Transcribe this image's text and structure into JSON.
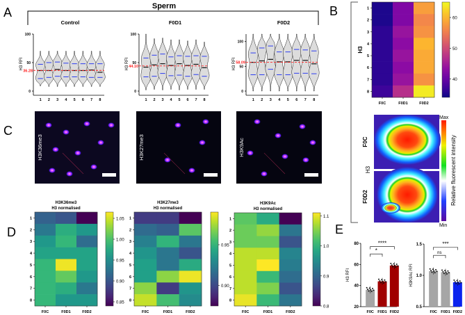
{
  "panel_letters": {
    "a": "A",
    "b": "B",
    "c": "C",
    "d": "D",
    "e": "E"
  },
  "panel_a": {
    "title": "Sperm"
  },
  "panel_b": {
    "fluor_labels": {
      "top": "F0C",
      "bottom": "F0D2",
      "channel": "H3"
    },
    "colorbar": {
      "max": "Max",
      "min": "Min",
      "label": "Relative fluorescent intensity"
    }
  },
  "panel_c": {
    "images": [
      {
        "label": "H3K36me3"
      },
      {
        "label": "H3K27me3"
      },
      {
        "label": "H3K9Ac"
      }
    ]
  },
  "chart_data": [
    {
      "id": "A-control",
      "type": "violin",
      "title": "Control",
      "ylabel": "H3 RFI",
      "ylim": [
        0,
        100
      ],
      "yticks": [
        "0",
        "50",
        "100"
      ],
      "categories": [
        "1",
        "2",
        "3",
        "4",
        "5",
        "6",
        "7",
        "8"
      ],
      "mean_line": {
        "value": 36.28,
        "label": "36.28"
      },
      "median": [
        36,
        36,
        38,
        36,
        36,
        36,
        37,
        33
      ],
      "q1": [
        22,
        24,
        26,
        25,
        25,
        25,
        24,
        24
      ],
      "q3": [
        47,
        50,
        51,
        49,
        48,
        48,
        48,
        48
      ],
      "min": [
        9,
        8,
        8,
        8,
        8,
        8,
        8,
        8
      ],
      "max": [
        70,
        70,
        70,
        70,
        70,
        70,
        70,
        70
      ]
    },
    {
      "id": "A-F0D1",
      "type": "violin",
      "title": "F0D1",
      "ylabel": "H3 RFI",
      "ylim": [
        0,
        100
      ],
      "yticks": [
        "0",
        "50",
        "100"
      ],
      "categories": [
        "1",
        "2",
        "3",
        "4",
        "5",
        "6",
        "7",
        "8"
      ],
      "mean_line": {
        "value": 44.1,
        "label": "44.10"
      },
      "median": [
        42,
        46,
        48,
        45,
        48,
        45,
        47,
        41
      ],
      "q1": [
        25,
        26,
        31,
        27,
        28,
        26,
        29,
        26
      ],
      "q3": [
        58,
        63,
        65,
        60,
        62,
        61,
        62,
        61
      ],
      "min": [
        2,
        3,
        2,
        3,
        2,
        3,
        3,
        3
      ],
      "max": [
        100,
        92,
        93,
        90,
        90,
        88,
        90,
        86
      ],
      "mean_at": [
        0
      ]
    },
    {
      "id": "A-F0D2",
      "type": "violin",
      "title": "F0D2",
      "ylabel": "H3 RFI",
      "ylim": [
        0,
        115
      ],
      "yticks": [
        "0",
        "50",
        "100"
      ],
      "categories": [
        "1",
        "2",
        "3",
        "4",
        "5",
        "6",
        "7",
        "8"
      ],
      "mean_line": {
        "value": 58.09,
        "label": "58.09"
      },
      "median": [
        58,
        61,
        64,
        59,
        59,
        62,
        62,
        55
      ],
      "q1": [
        33,
        33,
        44,
        33,
        33,
        36,
        36,
        35
      ],
      "q3": [
        77,
        87,
        91,
        79,
        79,
        84,
        83,
        81
      ],
      "min": [
        0,
        0,
        0,
        0,
        0,
        0,
        0,
        0
      ],
      "max": [
        115,
        115,
        115,
        115,
        115,
        115,
        115,
        115
      ]
    },
    {
      "id": "B-H3-heatmap",
      "type": "heatmap",
      "ylabel": "H3",
      "x": [
        "F0C",
        "F0D1",
        "F0D2"
      ],
      "y": [
        "1",
        "2",
        "3",
        "4",
        "5",
        "6",
        "7",
        "8"
      ],
      "colorscale": "plasma",
      "range": [
        34,
        65
      ],
      "colorbar_ticks": [
        "40",
        "50",
        "60"
      ],
      "values": [
        [
          35,
          42,
          58
        ],
        [
          35,
          42,
          56
        ],
        [
          36,
          44,
          57
        ],
        [
          36,
          43,
          60
        ],
        [
          36,
          44,
          59
        ],
        [
          36,
          43,
          59
        ],
        [
          36,
          44,
          57
        ],
        [
          37,
          47,
          64
        ]
      ]
    },
    {
      "id": "D-H3K36me3",
      "type": "heatmap",
      "title": "H3K36me3",
      "subtitle": "H3 normalised",
      "x": [
        "F0C",
        "F0D1",
        "F0D2"
      ],
      "y": [
        "1",
        "2",
        "3",
        "4",
        "5",
        "6",
        "7",
        "8"
      ],
      "colorscale": "viridis",
      "range": [
        0.84,
        1.065
      ],
      "colorbar_ticks": [
        "0.85",
        "0.90",
        "0.95",
        "1.00",
        "1.05"
      ],
      "values": [
        [
          0.91,
          0.9,
          0.84
        ],
        [
          0.93,
          0.98,
          0.96
        ],
        [
          0.96,
          0.99,
          0.92
        ],
        [
          0.97,
          0.97,
          0.97
        ],
        [
          0.99,
          1.06,
          0.97
        ],
        [
          0.99,
          1.01,
          0.96
        ],
        [
          0.99,
          0.98,
          0.93
        ],
        [
          0.99,
          0.96,
          0.96
        ]
      ]
    },
    {
      "id": "D-H3K27me3",
      "type": "heatmap",
      "title": "H3K27me3",
      "subtitle": "H3 normalised",
      "x": [
        "F0C",
        "F0D1",
        "F0D2"
      ],
      "y": [
        "1",
        "2",
        "3",
        "4",
        "5",
        "6",
        "7",
        "8"
      ],
      "colorscale": "viridis",
      "range": [
        0.875,
        0.99
      ],
      "colorbar_ticks": [
        "0.90",
        "0.95"
      ],
      "values": [
        [
          0.895,
          0.895,
          0.875
        ],
        [
          0.915,
          0.91,
          0.96
        ],
        [
          0.925,
          0.95,
          0.92
        ],
        [
          0.935,
          0.92,
          0.905
        ],
        [
          0.94,
          0.92,
          0.945
        ],
        [
          0.94,
          0.97,
          0.987
        ],
        [
          0.97,
          0.895,
          0.935
        ],
        [
          0.98,
          0.955,
          0.93
        ]
      ]
    },
    {
      "id": "D-H3K9Ac",
      "type": "heatmap",
      "title": "H3K9Ac",
      "subtitle": "H3 normalised",
      "x": [
        "F0C",
        "F0D1",
        "F0D2"
      ],
      "y": [
        "1",
        "2",
        "3",
        "4",
        "5",
        "6",
        "7",
        "8"
      ],
      "colorscale": "viridis",
      "range": [
        0.8,
        1.11
      ],
      "colorbar_ticks": [
        "0.8",
        "0.9",
        "1.0",
        "1.1"
      ],
      "values": [
        [
          1.03,
          0.99,
          0.8
        ],
        [
          1.04,
          1.06,
          0.92
        ],
        [
          1.04,
          1.04,
          0.88
        ],
        [
          1.08,
          1.08,
          0.94
        ],
        [
          1.08,
          1.11,
          0.93
        ],
        [
          1.08,
          1.01,
          0.91
        ],
        [
          1.08,
          1.05,
          0.88
        ],
        [
          1.1,
          1.01,
          0.92
        ]
      ]
    },
    {
      "id": "E-H3",
      "type": "bar",
      "ylabel": "H3 RFI",
      "categories": [
        "F0C",
        "F0D1",
        "F0D2"
      ],
      "values": [
        36,
        44,
        59
      ],
      "colors": [
        "#a6a6a6",
        "#a00000",
        "#a00000"
      ],
      "ylim": [
        20,
        80
      ],
      "yticks": [
        "20",
        "40",
        "60",
        "80"
      ],
      "significance": [
        {
          "pair": [
            "F0C",
            "F0D1"
          ],
          "label": "*"
        },
        {
          "pair": [
            "F0C",
            "F0D2"
          ],
          "label": "****"
        }
      ]
    },
    {
      "id": "E-H3K9Ac",
      "type": "bar",
      "ylabel": "H3K9Ac RFI",
      "categories": [
        "F0C",
        "F0D1",
        "F0D2"
      ],
      "values": [
        1.07,
        1.05,
        0.89
      ],
      "colors": [
        "#a6a6a6",
        "#a6a6a6",
        "#0a22ee"
      ],
      "ylim": [
        0.5,
        1.5
      ],
      "yticks": [
        "0.5",
        "1.0",
        "1.5"
      ],
      "significance": [
        {
          "pair": [
            "F0C",
            "F0D1"
          ],
          "label": "ns"
        },
        {
          "pair": [
            "F0C",
            "F0D2"
          ],
          "label": "***"
        }
      ]
    }
  ]
}
